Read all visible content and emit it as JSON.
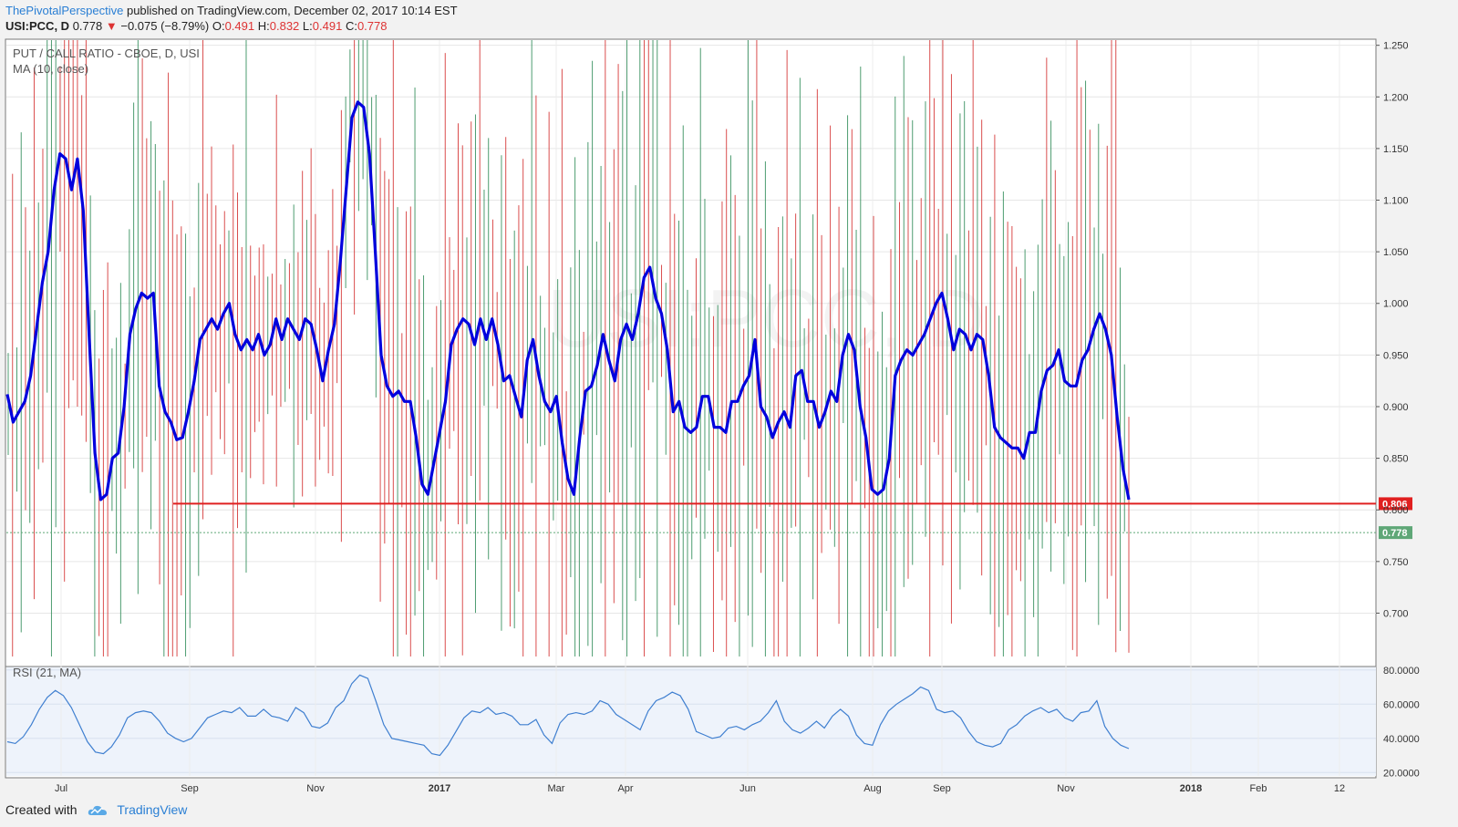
{
  "header": {
    "author": "ThePivotalPerspective",
    "published": "published on TradingView.com, December 02, 2017 10:14 EST",
    "symbol": "USI:PCC, D",
    "last": "0.778",
    "change": "−0.075 (−8.79%)",
    "o_label": "O:",
    "o_value": "0.491",
    "h_label": "H:",
    "h_value": "0.832",
    "l_label": "L:",
    "l_value": "0.491",
    "c_label": "C:",
    "c_value": "0.778"
  },
  "legend": {
    "main_title": "PUT / CALL RATIO - CBOE, D, USI",
    "ma_label": "MA (10, close)",
    "rsi_title": "RSI (21, MA)"
  },
  "footer": {
    "created_with": "Created with",
    "brand": "TradingView"
  },
  "colors": {
    "up": "#2e8b57",
    "down": "#d32f2f",
    "ma": "#0000dd",
    "rsi": "#3f7fd0",
    "hline": "#e02020",
    "last_badge": "#5fa777"
  },
  "chart_data": [
    {
      "type": "line",
      "title": "PUT / CALL RATIO - CBOE, D, USI",
      "x_axis": {
        "tick_labels": [
          "Jul",
          "Sep",
          "Nov",
          "2017",
          "Mar",
          "Apr",
          "Jun",
          "Aug",
          "Sep",
          "Nov",
          "2018",
          "Feb",
          "12"
        ],
        "range": [
          "2016-06",
          "2018-03"
        ]
      },
      "y_axis": {
        "tick_labels": [
          "0.700",
          "0.750",
          "0.800",
          "0.850",
          "0.900",
          "0.950",
          "1.000",
          "1.050",
          "1.100",
          "1.150",
          "1.200",
          "1.250"
        ],
        "ylim": [
          0.658,
          1.255
        ]
      },
      "daily_bars_note_colors": [
        "up",
        "down"
      ],
      "series": [
        {
          "name": "MA (10, close)",
          "values": [
            0.912,
            0.885,
            0.895,
            0.905,
            0.93,
            0.975,
            1.02,
            1.05,
            1.11,
            1.145,
            1.14,
            1.11,
            1.14,
            1.09,
            0.97,
            0.855,
            0.81,
            0.815,
            0.85,
            0.855,
            0.9,
            0.97,
            0.995,
            1.01,
            1.005,
            1.01,
            0.92,
            0.895,
            0.885,
            0.868,
            0.87,
            0.895,
            0.925,
            0.965,
            0.975,
            0.985,
            0.975,
            0.99,
            1.0,
            0.97,
            0.955,
            0.965,
            0.955,
            0.97,
            0.95,
            0.96,
            0.985,
            0.965,
            0.985,
            0.975,
            0.965,
            0.985,
            0.98,
            0.955,
            0.925,
            0.955,
            0.98,
            1.04,
            1.11,
            1.18,
            1.195,
            1.19,
            1.145,
            1.05,
            0.95,
            0.92,
            0.91,
            0.915,
            0.905,
            0.905,
            0.87,
            0.825,
            0.815,
            0.845,
            0.875,
            0.905,
            0.96,
            0.975,
            0.985,
            0.98,
            0.96,
            0.985,
            0.965,
            0.985,
            0.96,
            0.925,
            0.93,
            0.91,
            0.89,
            0.945,
            0.965,
            0.93,
            0.905,
            0.895,
            0.91,
            0.865,
            0.83,
            0.815,
            0.87,
            0.915,
            0.92,
            0.94,
            0.97,
            0.945,
            0.925,
            0.965,
            0.98,
            0.965,
            0.99,
            1.025,
            1.035,
            1.005,
            0.99,
            0.955,
            0.895,
            0.905,
            0.88,
            0.875,
            0.88,
            0.91,
            0.91,
            0.88,
            0.88,
            0.875,
            0.905,
            0.905,
            0.92,
            0.93,
            0.965,
            0.9,
            0.89,
            0.87,
            0.885,
            0.895,
            0.88,
            0.93,
            0.935,
            0.905,
            0.905,
            0.88,
            0.895,
            0.915,
            0.905,
            0.95,
            0.97,
            0.955,
            0.9,
            0.87,
            0.82,
            0.815,
            0.82,
            0.85,
            0.93,
            0.945,
            0.955,
            0.95,
            0.96,
            0.97,
            0.985,
            1.0,
            1.01,
            0.985,
            0.955,
            0.975,
            0.97,
            0.955,
            0.97,
            0.965,
            0.93,
            0.88,
            0.87,
            0.865,
            0.86,
            0.86,
            0.85,
            0.875,
            0.875,
            0.915,
            0.935,
            0.94,
            0.955,
            0.925,
            0.92,
            0.92,
            0.945,
            0.955,
            0.975,
            0.99,
            0.975,
            0.95,
            0.89,
            0.84,
            0.81
          ]
        },
        {
          "name": "RSI (21, MA)",
          "ylim": [
            18,
            82
          ],
          "tick_labels": [
            "20.0000",
            "40.0000",
            "60.0000",
            "80.0000"
          ],
          "values": [
            38,
            37,
            41,
            48,
            57,
            64,
            68,
            65,
            58,
            48,
            38,
            32,
            31,
            35,
            42,
            52,
            55,
            56,
            55,
            50,
            43,
            40,
            38,
            40,
            46,
            52,
            54,
            56,
            55,
            58,
            53,
            53,
            57,
            53,
            52,
            50,
            58,
            55,
            47,
            46,
            49,
            58,
            62,
            72,
            77,
            75,
            62,
            48,
            40,
            39,
            38,
            37,
            36,
            31,
            30,
            36,
            44,
            52,
            56,
            55,
            58,
            54,
            55,
            53,
            48,
            48,
            51,
            42,
            37,
            49,
            54,
            55,
            54,
            56,
            62,
            60,
            54,
            51,
            48,
            45,
            56,
            62,
            64,
            67,
            65,
            57,
            44,
            42,
            40,
            41,
            46,
            47,
            45,
            48,
            50,
            55,
            62,
            50,
            45,
            43,
            46,
            50,
            46,
            53,
            57,
            53,
            42,
            37,
            36,
            48,
            56,
            60,
            63,
            66,
            70,
            68,
            57,
            55,
            56,
            52,
            44,
            38,
            36,
            35,
            37,
            45,
            48,
            53,
            56,
            58,
            55,
            57,
            52,
            50,
            55,
            56,
            62,
            47,
            40,
            36,
            34
          ]
        }
      ],
      "horizontal_line": {
        "value": 0.806,
        "label": "0.806"
      },
      "last_value_marker": {
        "value": 0.778,
        "label": "0.778"
      }
    }
  ]
}
